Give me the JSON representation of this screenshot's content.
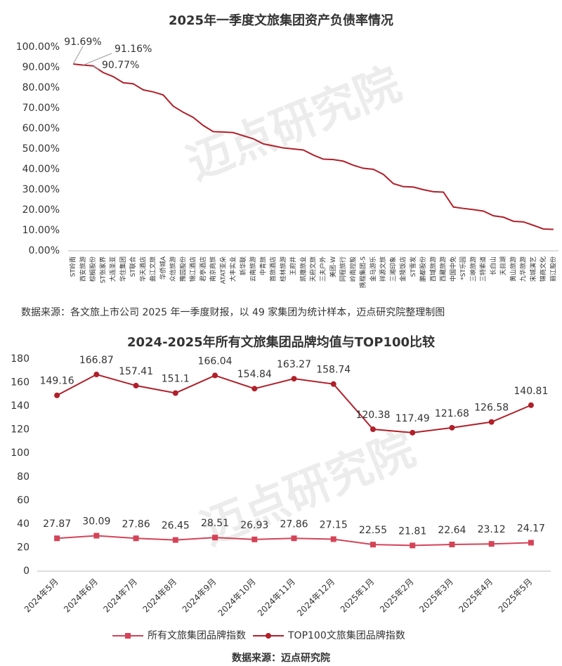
{
  "chart_data": [
    {
      "type": "line",
      "title": "2025年一季度文旅集团资产负债率情况",
      "watermark": "迈点研究院",
      "categories": [
        "ST岭南",
        "西安旅游",
        "棕榈股份",
        "ST张家界",
        "大连圣亚",
        "华住集团",
        "ST联合",
        "华天酒店",
        "曲江文旅",
        "华侨城A",
        "众信旅游",
        "豫园股份",
        "锦江酒店",
        "君亭酒店",
        "南京商旅",
        "ATAT亚朵",
        "大丰实业",
        "新华联",
        "云南旅游",
        "中青旅",
        "首旅酒店",
        "桂林旅游",
        "王府井",
        "凯撒旅业",
        "天府文旅",
        "三夫户外",
        "美团-W",
        "同程旅行",
        "岭南控股",
        "携程集团-S",
        "金马游乐",
        "祥源文旅",
        "三湘印象",
        "金陵饭店",
        "ST雪发",
        "鹏都股份",
        "西域旅游",
        "西藏旅游",
        "中国中免",
        "*ST乐园",
        "三峡旅游",
        "三特索道",
        "长白山",
        "天目湖",
        "黄山旅游",
        "九华旅游",
        "宋城演艺",
        "锦商文化",
        "丽江股份"
      ],
      "values": [
        91.69,
        91.16,
        90.77,
        87.5,
        85.5,
        82.5,
        82,
        79,
        78,
        76.5,
        71,
        68,
        65.5,
        61.5,
        58.5,
        58.3,
        58,
        56.5,
        55,
        52.5,
        51.5,
        50.5,
        50,
        49.5,
        47,
        45,
        44.8,
        44,
        42,
        40.5,
        40,
        37.5,
        33,
        31.5,
        31.3,
        30,
        29,
        28.8,
        21.5,
        20.8,
        20.2,
        19.5,
        17.2,
        16.5,
        14.5,
        14.2,
        12.5,
        10.7,
        10.5
      ],
      "value_labels": [
        "91.69%",
        "91.16%",
        "90.77%",
        null,
        null,
        null,
        null,
        null,
        null,
        null,
        null,
        null,
        null,
        null,
        null,
        null,
        null,
        null,
        null,
        null,
        null,
        null,
        null,
        null,
        null,
        null,
        null,
        null,
        null,
        null,
        null,
        null,
        null,
        null,
        null,
        null,
        null,
        null,
        null,
        null,
        null,
        null,
        null,
        null,
        null,
        null,
        null,
        null,
        null
      ],
      "color": "#b0202a",
      "ylim": [
        0,
        100
      ],
      "yticks": [
        {
          "value": 0,
          "label": "0.00%"
        },
        {
          "value": 10,
          "label": "10.00%"
        },
        {
          "value": 20,
          "label": "20.00%"
        },
        {
          "value": 30,
          "label": "30.00%"
        },
        {
          "value": 40,
          "label": "40.00%"
        },
        {
          "value": 50,
          "label": "50.00%"
        },
        {
          "value": 60,
          "label": "60.00%"
        },
        {
          "value": 70,
          "label": "70.00%"
        },
        {
          "value": 80,
          "label": "80.00%"
        },
        {
          "value": 90,
          "label": "90.00%"
        },
        {
          "value": 100,
          "label": "100.00%"
        }
      ],
      "grid": false,
      "source": "数据来源：各文旅上市公司 2025 年一季度财报，以 49 家集团为统计样本，迈点研究院整理制图"
    },
    {
      "type": "line",
      "title": "2024-2025年所有文旅集团品牌均值与TOP100比较",
      "watermark": "迈点研究院",
      "categories": [
        "2024年5月",
        "2024年6月",
        "2024年7月",
        "2024年8月",
        "2024年9月",
        "2024年10月",
        "2024年11月",
        "2024年12月",
        "2025年1月",
        "2025年2月",
        "2025年3月",
        "2025年4月",
        "2025年5月"
      ],
      "series": [
        {
          "name": "所有文旅集团品牌指数",
          "color": "#d44357",
          "marker": "square",
          "values": [
            27.87,
            30.09,
            27.86,
            26.45,
            28.51,
            26.93,
            27.86,
            27.15,
            22.55,
            21.81,
            22.64,
            23.12,
            24.17
          ]
        },
        {
          "name": "TOP100文旅集团品牌指数",
          "color": "#b0202a",
          "marker": "circle",
          "values": [
            149.16,
            166.87,
            157.41,
            151.1,
            166.04,
            154.84,
            163.27,
            158.74,
            120.38,
            117.49,
            121.68,
            126.58,
            140.81
          ]
        }
      ],
      "ylim": [
        0,
        180
      ],
      "yticks": [
        0,
        20,
        40,
        60,
        80,
        100,
        120,
        140,
        160,
        180
      ],
      "grid": false,
      "legend": "bottom",
      "source": "数据来源：迈点研究院"
    }
  ]
}
